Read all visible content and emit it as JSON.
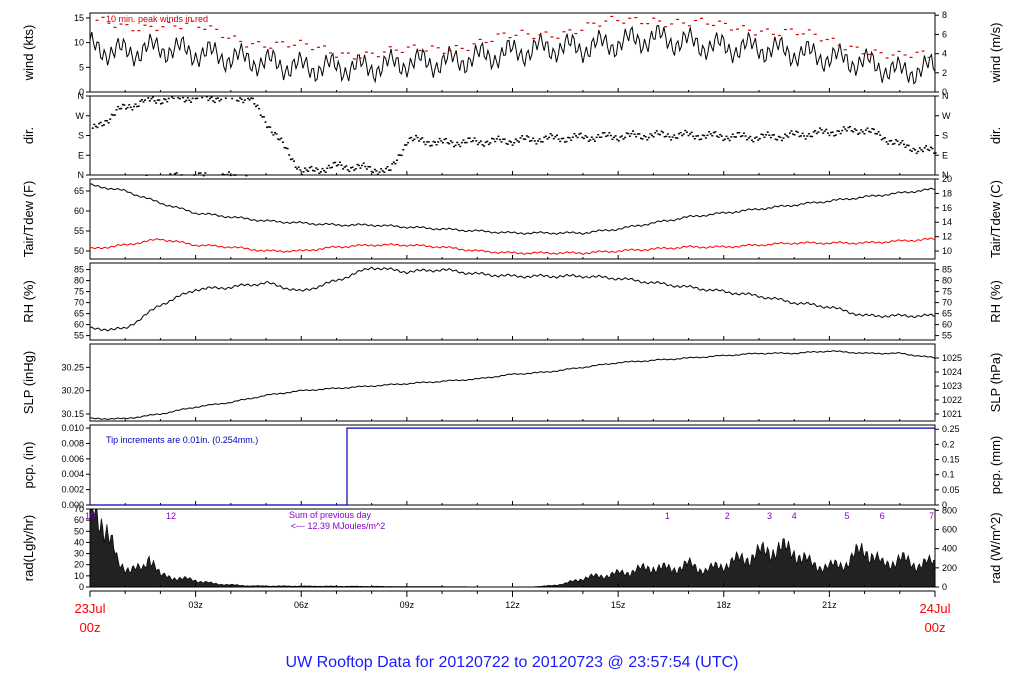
{
  "colors": {
    "frame": "#000000",
    "peak": "#cc0000",
    "tdew": "#ff0000",
    "rain": "#0000bb",
    "solar": "#8800cc",
    "title": "#1a1aff",
    "date": "#ff0000"
  },
  "title": "UW Rooftop Data for 20120722  to  20120723 @ 23:57:54  (UTC)",
  "time_axis": {
    "ticks": [
      "03z",
      "06z",
      "09z",
      "12z",
      "15z",
      "18z",
      "21z"
    ],
    "start_date": "23Jul",
    "start_hour": "00z",
    "end_date": "24Jul",
    "end_hour": "00z"
  },
  "chart_data": [
    {
      "type": "line",
      "ylabel_left": "wind (kts)",
      "ylabel_right": "wind (m/s)",
      "ylim_left": [
        0,
        16
      ],
      "left_ticks": [
        "0",
        "5",
        "10",
        "15"
      ],
      "ylim_right": [
        0,
        8.23
      ],
      "right_ticks": [
        "0",
        "2",
        "4",
        "6",
        "8"
      ],
      "annotation": "10 min. peak winds in red",
      "x_hours": [
        0,
        1,
        2,
        3,
        4,
        5,
        6,
        7,
        8,
        9,
        10,
        11,
        12,
        13,
        14,
        15,
        16,
        17,
        18,
        19,
        20,
        21,
        22,
        23,
        24
      ],
      "series": [
        {
          "values": [
            9,
            8,
            9,
            8,
            7,
            6,
            5,
            5,
            5,
            6,
            6,
            7,
            8,
            9,
            9,
            10,
            11,
            10,
            9,
            9,
            8,
            7,
            6,
            4,
            5
          ]
        },
        {
          "values": [
            14,
            13,
            14,
            13,
            11,
            10,
            9,
            8,
            8,
            8,
            9,
            10,
            11,
            12,
            13,
            14,
            15,
            14,
            13,
            13,
            12,
            10,
            9,
            7,
            7
          ]
        }
      ]
    },
    {
      "type": "scatter",
      "ylabel_left": "dir.",
      "ylabel_right": "dir.",
      "ylim": [
        0,
        360
      ],
      "left_ticks": [
        "N",
        "E",
        "S",
        "W",
        "N"
      ],
      "right_ticks": [
        "N",
        "E",
        "S",
        "W",
        "N"
      ],
      "x_hours": [
        0,
        0.8,
        1.5,
        2.5,
        3.5,
        4.5,
        6,
        7,
        7.8,
        8.5,
        9,
        10,
        11,
        12,
        13,
        14,
        15,
        16,
        17,
        18,
        19,
        20,
        21,
        22,
        23,
        23.5,
        24
      ],
      "values": [
        200,
        300,
        340,
        355,
        355,
        355,
        15,
        45,
        35,
        20,
        165,
        150,
        155,
        160,
        170,
        175,
        180,
        185,
        185,
        180,
        175,
        185,
        200,
        210,
        140,
        120,
        110
      ]
    },
    {
      "type": "line",
      "ylabel_left": "Tair/Tdew (F)",
      "ylabel_right": "Tair/Tdew (C)",
      "ylim_left": [
        48,
        68
      ],
      "left_ticks": [
        "50",
        "55",
        "60",
        "65"
      ],
      "ylim_right": [
        8.9,
        20
      ],
      "right_ticks": [
        "10",
        "12",
        "14",
        "16",
        "18",
        "20"
      ],
      "x_hours": [
        0,
        1,
        2,
        3,
        4,
        5,
        6,
        7,
        8,
        9,
        10,
        11,
        12,
        13,
        14,
        15,
        16,
        17,
        18,
        19,
        20,
        21,
        22,
        23,
        24
      ],
      "series": [
        {
          "name": "Tair",
          "values": [
            66.5,
            65,
            62,
            59.5,
            58.5,
            57.5,
            57,
            56.5,
            56.5,
            56,
            55.5,
            55,
            54.5,
            54.5,
            54.5,
            55.5,
            57,
            58.5,
            59.5,
            60.5,
            61.5,
            62.5,
            63.5,
            64.5,
            65.5
          ]
        },
        {
          "name": "Tdew",
          "values": [
            50.5,
            51.5,
            53,
            51.5,
            51,
            50,
            50,
            51,
            51.5,
            51.5,
            51,
            50,
            49.5,
            49.5,
            49.5,
            50,
            50.5,
            51,
            51,
            51.5,
            52,
            52,
            52,
            52.5,
            53
          ]
        }
      ]
    },
    {
      "type": "line",
      "ylabel_left": "RH (%)",
      "ylabel_right": "RH (%)",
      "ylim": [
        53,
        88
      ],
      "ticks": [
        "55",
        "60",
        "65",
        "70",
        "75",
        "80",
        "85"
      ],
      "x_hours": [
        0,
        1,
        2,
        3,
        4,
        5,
        6,
        7,
        8,
        9,
        10,
        11,
        12,
        13,
        14,
        15,
        16,
        17,
        18,
        19,
        20,
        21,
        22,
        23,
        24
      ],
      "values": [
        58,
        58,
        69,
        76,
        77,
        79,
        75,
        80,
        86,
        84,
        85,
        83,
        82,
        82,
        82,
        81,
        79,
        77,
        75,
        73,
        70,
        68,
        64,
        64,
        64
      ]
    },
    {
      "type": "line",
      "ylabel_left": "SLP (inHg)",
      "ylabel_right": "SLP (hPa)",
      "ylim_left": [
        30.135,
        30.3
      ],
      "left_ticks": [
        "30.15",
        "30.20",
        "30.25"
      ],
      "ylim_right": [
        1020.5,
        1026
      ],
      "right_ticks": [
        "1021",
        "1022",
        "1023",
        "1024",
        "1025"
      ],
      "x_hours": [
        0,
        1,
        2,
        3,
        4,
        5,
        6,
        7,
        8,
        9,
        10,
        11,
        12,
        13,
        14,
        15,
        16,
        17,
        18,
        19,
        20,
        21,
        22,
        23,
        24
      ],
      "values": [
        30.14,
        30.14,
        30.15,
        30.165,
        30.175,
        30.19,
        30.2,
        30.205,
        30.21,
        30.215,
        30.22,
        30.225,
        30.235,
        30.24,
        30.25,
        30.26,
        30.265,
        30.27,
        30.275,
        30.28,
        30.28,
        30.285,
        30.28,
        30.28,
        30.27
      ]
    },
    {
      "type": "line",
      "ylabel_left": "pcp. (in)",
      "ylabel_right": "pcp. (mm)",
      "ylim_left": [
        0,
        0.0104
      ],
      "left_ticks": [
        "0.000",
        "0.002",
        "0.004",
        "0.006",
        "0.008",
        "0.010"
      ],
      "ylim_right": [
        0,
        0.264
      ],
      "right_ticks": [
        "0",
        "0.05",
        "0.1",
        "0.15",
        "0.2",
        "0.25"
      ],
      "annotation": "Tip increments are 0.01in. (0.254mm.)",
      "x_hours": [
        0,
        7.3,
        7.3,
        24
      ],
      "values": [
        0,
        0,
        0.01,
        0.01
      ]
    },
    {
      "type": "area",
      "ylabel_left": "rad(Lgly/hr)",
      "ylabel_right": "rad (W/m^2)",
      "ylim_left": [
        0,
        70
      ],
      "left_ticks": [
        "0",
        "10",
        "20",
        "30",
        "40",
        "50",
        "60",
        "70"
      ],
      "ylim_right": [
        0,
        814
      ],
      "right_ticks": [
        "0",
        "200",
        "400",
        "600",
        "800"
      ],
      "moon_phase_labels": [
        "10",
        "12",
        "1",
        "2",
        "3",
        "4",
        "5",
        "6",
        "7"
      ],
      "annotation_line1": "Sum of previous day",
      "annotation_line2": "<--- 12.39 MJoules/m^2",
      "x_hours": [
        0,
        0.4,
        0.8,
        1,
        1.5,
        1.7,
        2,
        2.5,
        3,
        3.5,
        4,
        4.5,
        12.5,
        13,
        13.5,
        14,
        14.5,
        15,
        15.5,
        16,
        16.5,
        17,
        17.5,
        18,
        18.5,
        19,
        19.5,
        20,
        20.5,
        21,
        21.5,
        22,
        22.5,
        23,
        23.5,
        24
      ],
      "values": [
        70,
        60,
        20,
        18,
        15,
        30,
        10,
        8,
        6,
        3,
        2,
        1,
        0,
        1,
        3,
        8,
        10,
        12,
        15,
        18,
        16,
        20,
        15,
        20,
        25,
        30,
        35,
        32,
        20,
        18,
        22,
        35,
        20,
        25,
        20,
        22
      ]
    }
  ]
}
